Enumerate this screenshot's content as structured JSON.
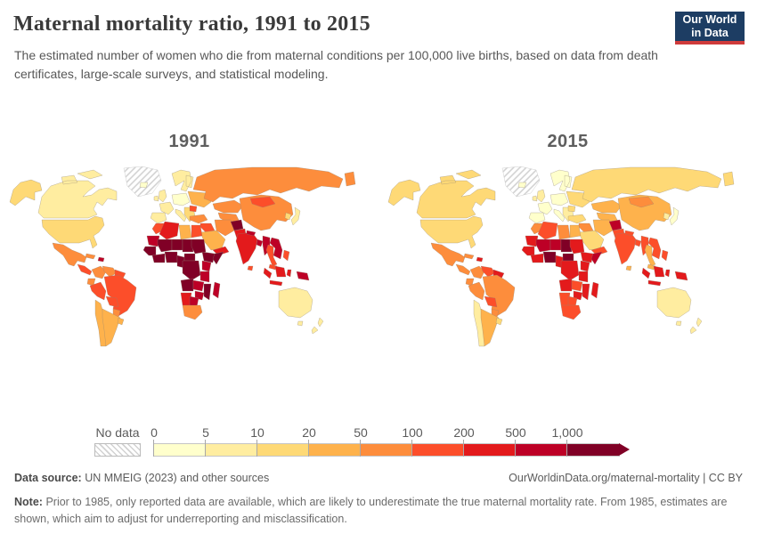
{
  "header": {
    "title": "Maternal mortality ratio, 1991 to 2015",
    "subtitle": "The estimated number of women who die from maternal conditions per 100,000 live births, based on data from death certificates, large-scale surveys, and statistical modeling.",
    "logo": {
      "line1": "Our World",
      "line2": "in Data",
      "navy": "#1d3d63",
      "red": "#cf3b3b"
    }
  },
  "maps": [
    {
      "year": "1991"
    },
    {
      "year": "2015"
    }
  ],
  "legend": {
    "no_data_label": "No data",
    "tick_labels": [
      "0",
      "5",
      "10",
      "20",
      "50",
      "100",
      "200",
      "500",
      "1,000"
    ],
    "bin_ids": [
      "0-5",
      "5-10",
      "10-20",
      "20-50",
      "50-100",
      "100-200",
      "200-500",
      "500-1000",
      "1000+"
    ],
    "colors": [
      "#FFFFCC",
      "#FFEDA0",
      "#FED976",
      "#FEB24C",
      "#FD8D3C",
      "#FC4E2A",
      "#E31A1C",
      "#BD0026",
      "#800026"
    ],
    "no_data_hatch_color": "#d2d2d2"
  },
  "footer": {
    "source_label": "Data source:",
    "source_text": "UN MMEIG (2023) and other sources",
    "attribution": "OurWorldinData.org/maternal-mortality | CC BY",
    "note_label": "Note:",
    "note_text": "Prior to 1985, only reported data are available, which are likely to underestimate the true maternal mortality rate. From 1985, estimates are shown, which aim to adjust for underreporting and misclassification."
  },
  "chart_data": {
    "type": "choropleth_map",
    "title": "Maternal mortality ratio, 1991 to 2015",
    "unit": "maternal deaths per 100,000 live births",
    "years": [
      "1991",
      "2015"
    ],
    "bins": [
      "no-data",
      "0-5",
      "5-10",
      "10-20",
      "20-50",
      "50-100",
      "100-200",
      "200-500",
      "500-1000",
      "1000+"
    ],
    "regions": [
      {
        "id": "alaska",
        "name": "Alaska (United States)",
        "y1991": "10-20",
        "y2015": "10-20"
      },
      {
        "id": "canada",
        "name": "Canada",
        "y1991": "5-10",
        "y2015": "10-20"
      },
      {
        "id": "greenland",
        "name": "Greenland",
        "y1991": "no-data",
        "y2015": "no-data"
      },
      {
        "id": "usa",
        "name": "United States",
        "y1991": "10-20",
        "y2015": "10-20"
      },
      {
        "id": "mexico",
        "name": "Mexico",
        "y1991": "50-100",
        "y2015": "50-100"
      },
      {
        "id": "camerica",
        "name": "Central America",
        "y1991": "100-200",
        "y2015": "50-100"
      },
      {
        "id": "cuba",
        "name": "Cuba",
        "y1991": "50-100",
        "y2015": "50-100"
      },
      {
        "id": "hispaniola",
        "name": "Haiti & Dominican Republic",
        "y1991": "500-1000",
        "y2015": "200-500"
      },
      {
        "id": "colombia",
        "name": "Colombia",
        "y1991": "50-100",
        "y2015": "50-100"
      },
      {
        "id": "venezuela",
        "name": "Venezuela",
        "y1991": "50-100",
        "y2015": "100-200"
      },
      {
        "id": "guyanas",
        "name": "Guyana & Suriname",
        "y1991": "100-200",
        "y2015": "200-500"
      },
      {
        "id": "ecuador",
        "name": "Ecuador",
        "y1991": "50-100",
        "y2015": "50-100"
      },
      {
        "id": "peru",
        "name": "Peru",
        "y1991": "100-200",
        "y2015": "50-100"
      },
      {
        "id": "brazil",
        "name": "Brazil",
        "y1991": "100-200",
        "y2015": "50-100"
      },
      {
        "id": "bolivia",
        "name": "Bolivia",
        "y1991": "100-200",
        "y2015": "100-200"
      },
      {
        "id": "paraguay",
        "name": "Paraguay",
        "y1991": "50-100",
        "y2015": "50-100"
      },
      {
        "id": "chile",
        "name": "Chile",
        "y1991": "20-50",
        "y2015": "5-10"
      },
      {
        "id": "argentina",
        "name": "Argentina",
        "y1991": "20-50",
        "y2015": "20-50"
      },
      {
        "id": "uruguay",
        "name": "Uruguay",
        "y1991": "20-50",
        "y2015": "10-20"
      },
      {
        "id": "iceland",
        "name": "Iceland",
        "y1991": "0-5",
        "y2015": "0-5"
      },
      {
        "id": "uk",
        "name": "United Kingdom & Ireland",
        "y1991": "5-10",
        "y2015": "5-10"
      },
      {
        "id": "scandinavia",
        "name": "Scandinavia",
        "y1991": "5-10",
        "y2015": "0-5"
      },
      {
        "id": "weurope",
        "name": "France",
        "y1991": "5-10",
        "y2015": "0-5"
      },
      {
        "id": "iberia",
        "name": "Spain & Portugal",
        "y1991": "5-10",
        "y2015": "0-5"
      },
      {
        "id": "ceurope",
        "name": "Germany & Central Europe",
        "y1991": "0-5",
        "y2015": "0-5"
      },
      {
        "id": "italy",
        "name": "Italy",
        "y1991": "5-10",
        "y2015": "0-5"
      },
      {
        "id": "balkans",
        "name": "Balkans",
        "y1991": "10-20",
        "y2015": "5-10"
      },
      {
        "id": "romania",
        "name": "Romania",
        "y1991": "100-200",
        "y2015": "10-20"
      },
      {
        "id": "eeurope",
        "name": "Ukraine & Belarus",
        "y1991": "20-50",
        "y2015": "10-20"
      },
      {
        "id": "russia",
        "name": "Russia",
        "y1991": "50-100",
        "y2015": "10-20"
      },
      {
        "id": "kazakh",
        "name": "Kazakhstan",
        "y1991": "50-100",
        "y2015": "20-50"
      },
      {
        "id": "centralasia",
        "name": "Central Asia",
        "y1991": "50-100",
        "y2015": "20-50"
      },
      {
        "id": "turkey",
        "name": "Turkey",
        "y1991": "50-100",
        "y2015": "10-20"
      },
      {
        "id": "iraq",
        "name": "Iraq & Syria",
        "y1991": "100-200",
        "y2015": "50-100"
      },
      {
        "id": "saudi",
        "name": "Saudi Arabia",
        "y1991": "20-50",
        "y2015": "10-20"
      },
      {
        "id": "yemen",
        "name": "Yemen & Oman",
        "y1991": "200-500",
        "y2015": "100-200"
      },
      {
        "id": "iran",
        "name": "Iran",
        "y1991": "50-100",
        "y2015": "20-50"
      },
      {
        "id": "afghanistan",
        "name": "Afghanistan",
        "y1991": "1000+",
        "y2015": "500-1000"
      },
      {
        "id": "pakistan",
        "name": "Pakistan",
        "y1991": "200-500",
        "y2015": "100-200"
      },
      {
        "id": "india",
        "name": "India",
        "y1991": "200-500",
        "y2015": "100-200"
      },
      {
        "id": "srilanka",
        "name": "Sri Lanka",
        "y1991": "100-200",
        "y2015": "20-50"
      },
      {
        "id": "nepal",
        "name": "Nepal",
        "y1991": "500-1000",
        "y2015": "100-200"
      },
      {
        "id": "bangladesh",
        "name": "Bangladesh",
        "y1991": "500-1000",
        "y2015": "100-200"
      },
      {
        "id": "myanmar",
        "name": "Myanmar",
        "y1991": "500-1000",
        "y2015": "100-200"
      },
      {
        "id": "thailand",
        "name": "Thailand",
        "y1991": "100-200",
        "y2015": "20-50"
      },
      {
        "id": "indochina",
        "name": "Laos, Cambodia & Vietnam",
        "y1991": "500-1000",
        "y2015": "100-200"
      },
      {
        "id": "malaysia",
        "name": "Malaysia",
        "y1991": "100-200",
        "y2015": "20-50"
      },
      {
        "id": "china",
        "name": "China",
        "y1991": "50-100",
        "y2015": "20-50"
      },
      {
        "id": "mongolia",
        "name": "Mongolia",
        "y1991": "100-200",
        "y2015": "50-100"
      },
      {
        "id": "korea",
        "name": "Korea",
        "y1991": "10-20",
        "y2015": "5-10"
      },
      {
        "id": "japan",
        "name": "Japan",
        "y1991": "5-10",
        "y2015": "0-5"
      },
      {
        "id": "philippines",
        "name": "Philippines",
        "y1991": "100-200",
        "y2015": "100-200"
      },
      {
        "id": "indonesia",
        "name": "Indonesia",
        "y1991": "200-500",
        "y2015": "200-500"
      },
      {
        "id": "papua",
        "name": "Papua New Guinea",
        "y1991": "500-1000",
        "y2015": "200-500"
      },
      {
        "id": "australia",
        "name": "Australia",
        "y1991": "5-10",
        "y2015": "5-10"
      },
      {
        "id": "newzealand",
        "name": "New Zealand",
        "y1991": "5-10",
        "y2015": "5-10"
      },
      {
        "id": "morocco",
        "name": "Morocco",
        "y1991": "100-200",
        "y2015": "50-100"
      },
      {
        "id": "algeria",
        "name": "Algeria",
        "y1991": "200-500",
        "y2015": "100-200"
      },
      {
        "id": "libya",
        "name": "Libya",
        "y1991": "20-50",
        "y2015": "50-100"
      },
      {
        "id": "egypt",
        "name": "Egypt",
        "y1991": "100-200",
        "y2015": "20-50"
      },
      {
        "id": "mauritania",
        "name": "Mauritania",
        "y1991": "500-1000",
        "y2015": "200-500"
      },
      {
        "id": "mali",
        "name": "Mali",
        "y1991": "1000+",
        "y2015": "500-1000"
      },
      {
        "id": "niger",
        "name": "Niger",
        "y1991": "1000+",
        "y2015": "500-1000"
      },
      {
        "id": "chad",
        "name": "Chad",
        "y1991": "1000+",
        "y2015": "1000+"
      },
      {
        "id": "sudan",
        "name": "Sudan",
        "y1991": "1000+",
        "y2015": "200-500"
      },
      {
        "id": "senegal",
        "name": "Senegal & Guinea",
        "y1991": "1000+",
        "y2015": "200-500"
      },
      {
        "id": "ivoryghana",
        "name": "Côte d'Ivoire & Ghana",
        "y1991": "1000+",
        "y2015": "200-500"
      },
      {
        "id": "nigeria",
        "name": "Nigeria",
        "y1991": "1000+",
        "y2015": "1000+"
      },
      {
        "id": "cameroon",
        "name": "Cameroon & Gabon",
        "y1991": "1000+",
        "y2015": "200-500"
      },
      {
        "id": "car",
        "name": "Central African Republic",
        "y1991": "1000+",
        "y2015": "1000+"
      },
      {
        "id": "ethiopia",
        "name": "Ethiopia",
        "y1991": "1000+",
        "y2015": "200-500"
      },
      {
        "id": "somalia",
        "name": "Somalia",
        "y1991": "1000+",
        "y2015": "500-1000"
      },
      {
        "id": "kenya",
        "name": "Kenya",
        "y1991": "500-1000",
        "y2015": "200-500"
      },
      {
        "id": "drc",
        "name": "Democratic Republic of Congo",
        "y1991": "1000+",
        "y2015": "200-500"
      },
      {
        "id": "tanzania",
        "name": "Tanzania",
        "y1991": "500-1000",
        "y2015": "200-500"
      },
      {
        "id": "angola",
        "name": "Angola",
        "y1991": "1000+",
        "y2015": "200-500"
      },
      {
        "id": "zambia",
        "name": "Zambia",
        "y1991": "500-1000",
        "y2015": "100-200"
      },
      {
        "id": "mozambique",
        "name": "Mozambique",
        "y1991": "1000+",
        "y2015": "200-500"
      },
      {
        "id": "zimbabwe",
        "name": "Zimbabwe",
        "y1991": "500-1000",
        "y2015": "200-500"
      },
      {
        "id": "namibia",
        "name": "Namibia",
        "y1991": "200-500",
        "y2015": "100-200"
      },
      {
        "id": "botswana",
        "name": "Botswana",
        "y1991": "500-1000",
        "y2015": "100-200"
      },
      {
        "id": "southafrica",
        "name": "South Africa",
        "y1991": "50-100",
        "y2015": "100-200"
      },
      {
        "id": "madagascar",
        "name": "Madagascar",
        "y1991": "500-1000",
        "y2015": "200-500"
      }
    ]
  }
}
